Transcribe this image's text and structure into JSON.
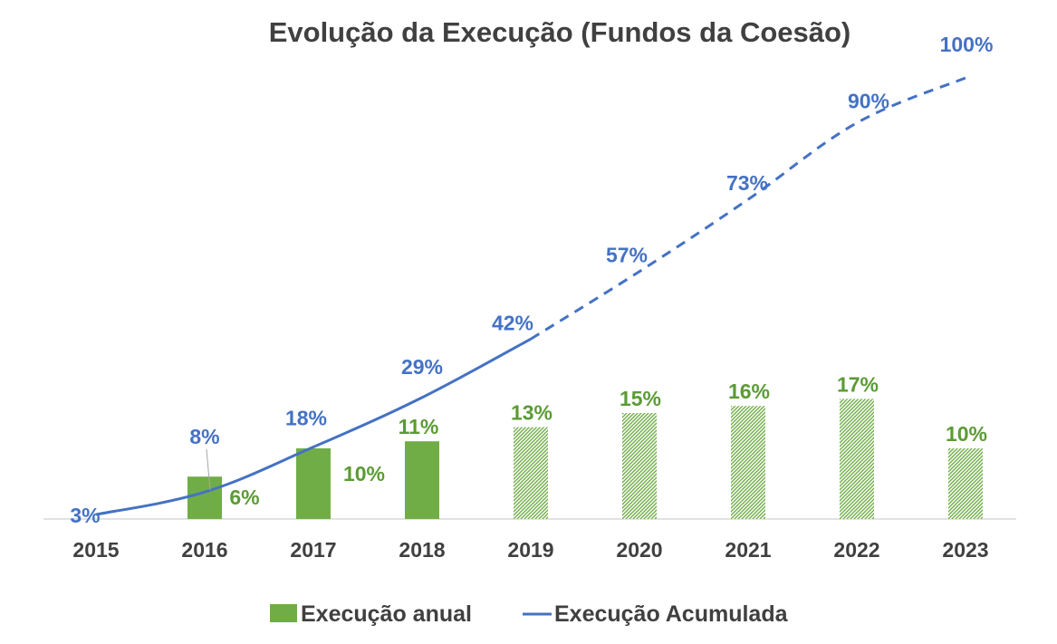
{
  "chart_data": {
    "type": "bar",
    "title": "Evolução da Execução (Fundos da Coesão)",
    "categories": [
      "2015",
      "2016",
      "2017",
      "2018",
      "2019",
      "2020",
      "2021",
      "2022",
      "2023"
    ],
    "series": [
      {
        "name": "Execução anual",
        "kind": "bar",
        "values": [
          null,
          6,
          10,
          11,
          13,
          15,
          16,
          17,
          10
        ],
        "labels": [
          "",
          "6%",
          "10%",
          "11%",
          "13%",
          "15%",
          "16%",
          "17%",
          "10%"
        ],
        "projected_from": "2019",
        "color": "#70ad47"
      },
      {
        "name": "Execução Acumulada",
        "kind": "line",
        "values": [
          3,
          8,
          18,
          29,
          42,
          57,
          73,
          90,
          100
        ],
        "labels": [
          "3%",
          "8%",
          "18%",
          "29%",
          "42%",
          "57%",
          "73%",
          "90%",
          "100%"
        ],
        "projected_from": "2019",
        "color": "#4472c4"
      }
    ],
    "ylim": [
      0,
      100
    ],
    "xlabel": "",
    "ylabel": "",
    "grid": false,
    "legend_position": "bottom"
  }
}
